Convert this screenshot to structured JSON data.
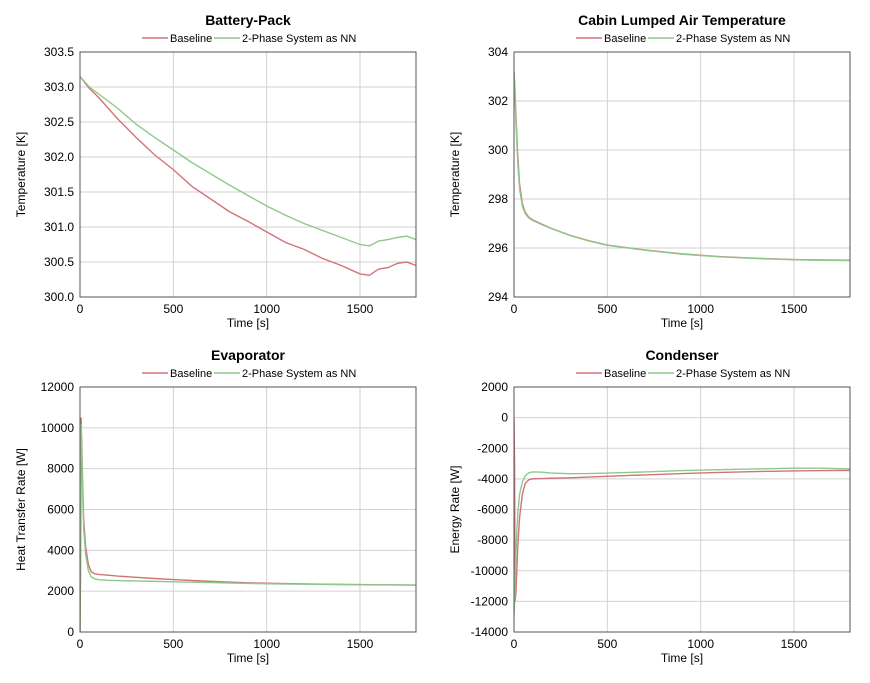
{
  "chart_data": [
    {
      "type": "line",
      "title": "Battery-Pack",
      "xlabel": "Time [s]",
      "ylabel": "Temperature [K]",
      "xlim": [
        0,
        1800
      ],
      "ylim": [
        300.0,
        303.5
      ],
      "xticks": [
        "0",
        "500",
        "1000",
        "1500"
      ],
      "yticks": [
        "300.0",
        "300.5",
        "301.0",
        "301.5",
        "302.0",
        "302.5",
        "303.0",
        "303.5"
      ],
      "grid": true,
      "legend_position": "top-center",
      "series": [
        {
          "name": "Baseline",
          "color": "#d2737a",
          "x": [
            0,
            50,
            100,
            200,
            300,
            400,
            500,
            600,
            700,
            800,
            900,
            1000,
            1100,
            1200,
            1300,
            1400,
            1500,
            1550,
            1600,
            1650,
            1700,
            1750,
            1800
          ],
          "y": [
            303.15,
            302.98,
            302.85,
            302.55,
            302.28,
            302.03,
            301.82,
            301.58,
            301.4,
            301.22,
            301.08,
            300.93,
            300.78,
            300.68,
            300.55,
            300.45,
            300.33,
            300.31,
            300.4,
            300.42,
            300.48,
            300.5,
            300.45
          ]
        },
        {
          "name": "2-Phase System as NN",
          "color": "#8ec98a",
          "x": [
            0,
            50,
            100,
            200,
            300,
            400,
            500,
            600,
            700,
            800,
            900,
            1000,
            1100,
            1200,
            1300,
            1400,
            1500,
            1550,
            1600,
            1650,
            1700,
            1750,
            1800
          ],
          "y": [
            303.15,
            303.0,
            302.9,
            302.7,
            302.47,
            302.28,
            302.1,
            301.92,
            301.76,
            301.6,
            301.45,
            301.3,
            301.17,
            301.05,
            300.95,
            300.85,
            300.75,
            300.73,
            300.8,
            300.82,
            300.85,
            300.87,
            300.82
          ]
        }
      ]
    },
    {
      "type": "line",
      "title": "Cabin Lumped Air Temperature",
      "xlabel": "Time [s]",
      "ylabel": "Temperature [K]",
      "xlim": [
        0,
        1800
      ],
      "ylim": [
        294,
        304
      ],
      "xticks": [
        "0",
        "500",
        "1000",
        "1500"
      ],
      "yticks": [
        "294",
        "296",
        "298",
        "300",
        "302",
        "304"
      ],
      "grid": true,
      "legend_position": "top-center",
      "series": [
        {
          "name": "Baseline",
          "color": "#d2737a",
          "x": [
            0,
            5,
            10,
            20,
            30,
            45,
            60,
            80,
            100,
            150,
            200,
            300,
            400,
            500,
            700,
            900,
            1100,
            1300,
            1500,
            1650,
            1800
          ],
          "y": [
            303.2,
            302.5,
            301.5,
            299.8,
            298.6,
            297.8,
            297.45,
            297.25,
            297.15,
            296.97,
            296.8,
            296.52,
            296.3,
            296.12,
            295.92,
            295.76,
            295.65,
            295.58,
            295.53,
            295.51,
            295.5
          ]
        },
        {
          "name": "2-Phase System as NN",
          "color": "#8ec98a",
          "x": [
            0,
            5,
            10,
            20,
            30,
            45,
            60,
            80,
            100,
            150,
            200,
            300,
            400,
            500,
            700,
            900,
            1100,
            1300,
            1500,
            1650,
            1800
          ],
          "y": [
            303.2,
            302.3,
            301.2,
            299.5,
            298.4,
            297.7,
            297.4,
            297.22,
            297.12,
            296.95,
            296.79,
            296.51,
            296.29,
            296.11,
            295.91,
            295.75,
            295.64,
            295.57,
            295.52,
            295.5,
            295.49
          ]
        }
      ]
    },
    {
      "type": "line",
      "title": "Evaporator",
      "xlabel": "Time [s]",
      "ylabel": "Heat Transfer Rate [W]",
      "xlim": [
        0,
        1800
      ],
      "ylim": [
        0,
        12000
      ],
      "xticks": [
        "0",
        "500",
        "1000",
        "1500"
      ],
      "yticks": [
        "0",
        "2000",
        "4000",
        "6000",
        "8000",
        "10000",
        "12000"
      ],
      "grid": true,
      "legend_position": "top-center",
      "series": [
        {
          "name": "Baseline",
          "color": "#d2737a",
          "x": [
            0,
            3,
            6,
            10,
            15,
            20,
            30,
            45,
            60,
            80,
            100,
            150,
            200,
            300,
            400,
            500,
            700,
            900,
            1100,
            1300,
            1500,
            1650,
            1800
          ],
          "y": [
            0,
            3000,
            10500,
            9000,
            7000,
            5500,
            4200,
            3300,
            2950,
            2850,
            2820,
            2780,
            2740,
            2680,
            2620,
            2570,
            2480,
            2410,
            2370,
            2340,
            2320,
            2310,
            2300
          ]
        },
        {
          "name": "2-Phase System as NN",
          "color": "#8ec98a",
          "x": [
            0,
            3,
            6,
            10,
            15,
            20,
            30,
            45,
            60,
            80,
            100,
            150,
            200,
            300,
            400,
            500,
            700,
            900,
            1100,
            1300,
            1500,
            1650,
            1800
          ],
          "y": [
            0,
            10000,
            10200,
            8500,
            6500,
            5000,
            3800,
            3000,
            2700,
            2600,
            2560,
            2530,
            2520,
            2500,
            2480,
            2460,
            2420,
            2380,
            2350,
            2330,
            2310,
            2305,
            2300
          ]
        }
      ]
    },
    {
      "type": "line",
      "title": "Condenser",
      "xlabel": "Time [s]",
      "ylabel": "Energy Rate [W]",
      "xlim": [
        0,
        1800
      ],
      "ylim": [
        -14000,
        2000
      ],
      "xticks": [
        "0",
        "500",
        "1000",
        "1500"
      ],
      "yticks": [
        "2000",
        "0",
        "-2000",
        "-4000",
        "-6000",
        "-8000",
        "-10000",
        "-12000",
        "-14000"
      ],
      "grid": true,
      "legend_position": "top-center",
      "series": [
        {
          "name": "Baseline",
          "color": "#d2737a",
          "x": [
            0,
            3,
            6,
            10,
            15,
            20,
            30,
            45,
            60,
            80,
            100,
            150,
            200,
            300,
            400,
            500,
            700,
            900,
            1100,
            1300,
            1500,
            1650,
            1800
          ],
          "y": [
            0,
            -3000,
            -12000,
            -11500,
            -10000,
            -8500,
            -6500,
            -5000,
            -4300,
            -4050,
            -4000,
            -3980,
            -3960,
            -3930,
            -3880,
            -3830,
            -3740,
            -3650,
            -3580,
            -3520,
            -3480,
            -3460,
            -3450
          ]
        },
        {
          "name": "2-Phase System as NN",
          "color": "#8ec98a",
          "x": [
            0,
            3,
            6,
            10,
            15,
            20,
            30,
            45,
            60,
            80,
            100,
            150,
            200,
            300,
            400,
            500,
            700,
            900,
            1100,
            1300,
            1500,
            1650,
            1800
          ],
          "y": [
            -13000,
            -12000,
            -10500,
            -9000,
            -7500,
            -6300,
            -5000,
            -4200,
            -3800,
            -3600,
            -3550,
            -3560,
            -3620,
            -3660,
            -3650,
            -3620,
            -3550,
            -3460,
            -3400,
            -3350,
            -3300,
            -3300,
            -3350
          ]
        }
      ]
    }
  ]
}
